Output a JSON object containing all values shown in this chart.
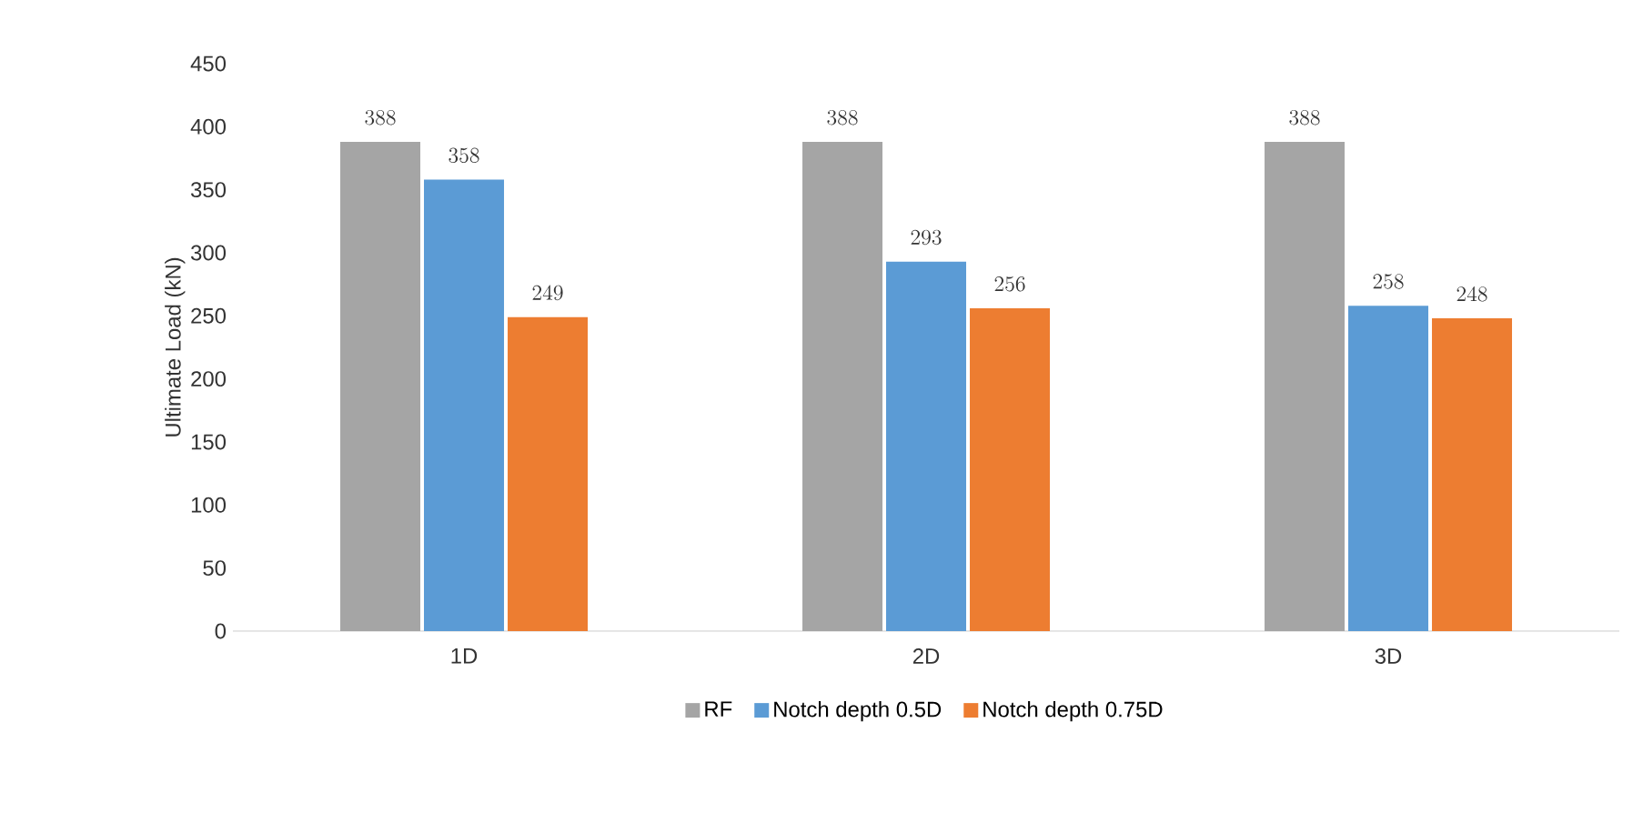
{
  "chart_data": {
    "type": "bar",
    "ylabel": "Ultimate Load (kN)",
    "categories": [
      "1D",
      "2D",
      "3D"
    ],
    "series": [
      {
        "name": "RF",
        "color": "#a5a5a5",
        "values": [
          388,
          388,
          388
        ]
      },
      {
        "name": "Notch depth 0.5D",
        "color": "#5b9bd5",
        "values": [
          358,
          293,
          258
        ]
      },
      {
        "name": "Notch depth 0.75D",
        "color": "#ed7d31",
        "values": [
          249,
          256,
          248
        ]
      }
    ],
    "ylim": [
      0,
      450
    ],
    "yticks": [
      0,
      50,
      100,
      150,
      200,
      250,
      300,
      350,
      400,
      450
    ],
    "data_labels": true,
    "grid": false,
    "legend": "bottom"
  }
}
